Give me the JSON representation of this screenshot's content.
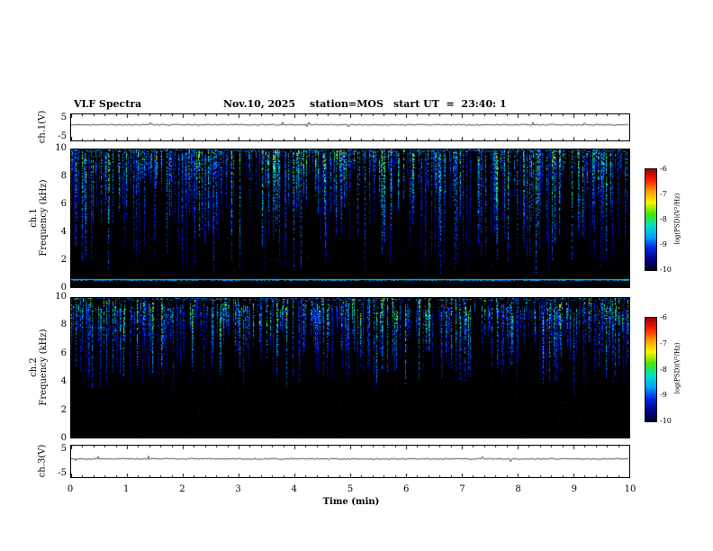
{
  "header": {
    "title": "VLF Spectra",
    "date": "Nov.10, 2025",
    "station": "station=MOS",
    "start_ut": "start UT  =  23:40: 1"
  },
  "axes": {
    "x": {
      "label": "Time (min)",
      "min": 0,
      "max": 10,
      "ticks": [
        "0",
        "1",
        "2",
        "3",
        "4",
        "5",
        "6",
        "7",
        "8",
        "9",
        "10"
      ]
    },
    "spec_y_ticks": [
      "10",
      "8",
      "6",
      "4",
      "2",
      "0"
    ],
    "strip_y_ticks": [
      "5",
      "-5"
    ]
  },
  "panels": {
    "strip1": {
      "ylabel": "ch.1(V)"
    },
    "spec1": {
      "ylabel_line1": "ch.1",
      "ylabel_line2": "Frequency (kHz)"
    },
    "spec2": {
      "ylabel_line1": "ch.2",
      "ylabel_line2": "Frequency (kHz)"
    },
    "strip3": {
      "ylabel": "ch.3(V)"
    }
  },
  "colorbar": {
    "label": "log(PSD)(V²/Hz)",
    "ticks": [
      "-6",
      "-7",
      "-8",
      "-9",
      "-10"
    ],
    "min": -10,
    "max": -6,
    "gradient": [
      "#9b0000",
      "#ff1e00",
      "#ff9c00",
      "#fff200",
      "#46e800",
      "#00e0c8",
      "#00a2ff",
      "#0028e0",
      "#000090",
      "#000028"
    ]
  },
  "chart_data": [
    {
      "type": "line",
      "name": "ch1-voltage-strip",
      "ylabel": "ch.1(V)",
      "ylim": [
        -5,
        5
      ],
      "xlim": [
        0,
        10
      ],
      "x_unit": "min",
      "description": "Nearly flat noisy voltage trace sitting slightly above 0 V (~+1 V) with tiny impulsive spikes across the full 10 minutes"
    },
    {
      "type": "heatmap",
      "name": "ch1-spectrogram",
      "ylabel": "Frequency (kHz)",
      "ylim": [
        0,
        10
      ],
      "xlim": [
        0,
        10
      ],
      "x_unit": "min",
      "zlabel": "log(PSD)(V²/Hz)",
      "zlim": [
        -10,
        -6
      ],
      "background_level": -10,
      "features": [
        "dense vertical impulsive sferic streaks starting at 10 kHz and descending 2-8 kHz, intensities mostly -9 to -7.5 (blue to cyan), brighter green streaks ~-7, rare red pixels ~-6 at streak tops",
        "continuous narrowband cyan emission line near 0.6 kHz (~ -7.5) spanning the whole record",
        "sparse faint blue speckle noise below 4 kHz over black (-10) background"
      ]
    },
    {
      "type": "heatmap",
      "name": "ch2-spectrogram",
      "ylabel": "Frequency (kHz)",
      "ylim": [
        0,
        10
      ],
      "xlim": [
        0,
        10
      ],
      "x_unit": "min",
      "zlabel": "log(PSD)(V²/Hz)",
      "zlim": [
        -10,
        -6
      ],
      "background_level": -10,
      "features": [
        "dense vertical sferic streaks concentrated between ~4.5 and 9.5 kHz, intensities -9 to -7 (blue/cyan/green), occasional red pixels ~-6",
        "a few streaks extend down toward 0-3 kHz; lower band mostly black (-10) with sparse blue speckle"
      ]
    },
    {
      "type": "line",
      "name": "ch3-voltage-strip",
      "ylabel": "ch.3(V)",
      "ylim": [
        -5,
        5
      ],
      "xlim": [
        0,
        10
      ],
      "x_unit": "min",
      "description": "Nearly flat noisy voltage trace near 0 V with very small fluctuations across the full 10 minutes"
    }
  ]
}
